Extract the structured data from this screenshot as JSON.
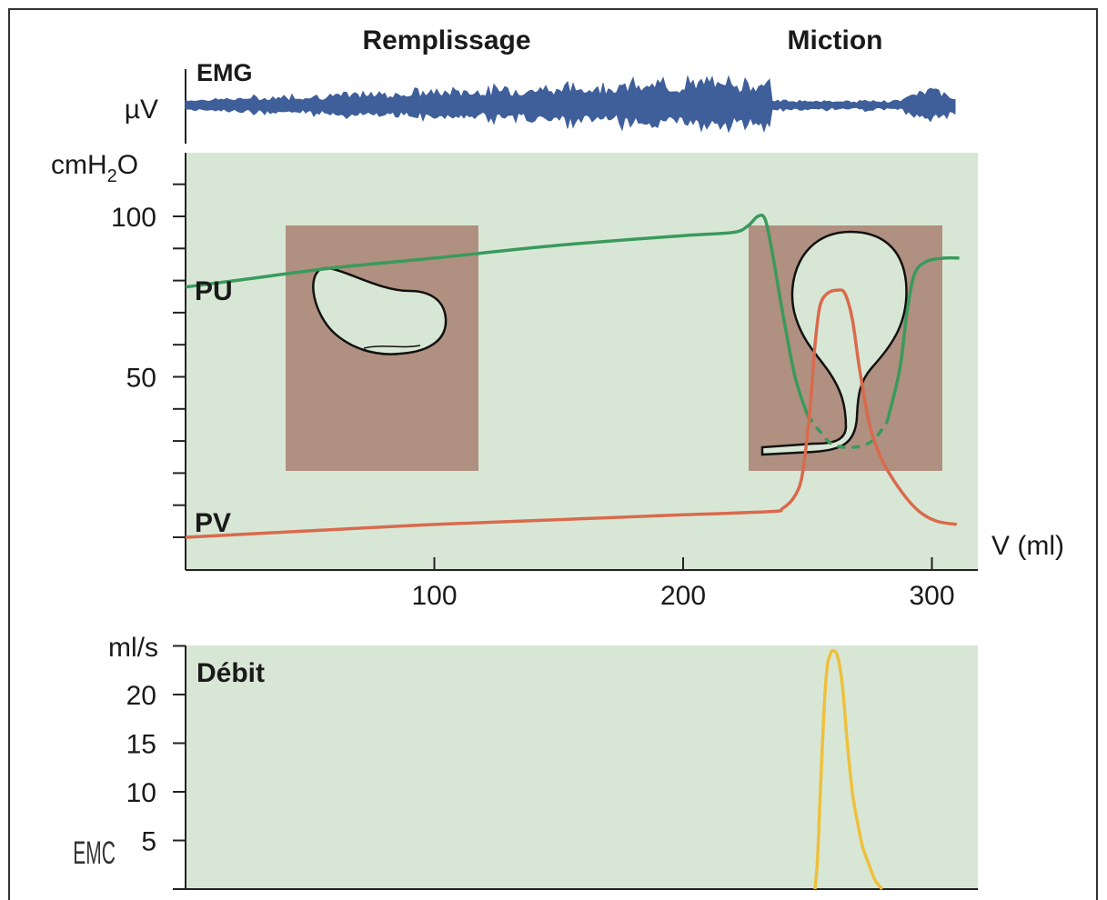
{
  "chart_data": [
    {
      "type": "line",
      "panel": "EMG",
      "phase_labels": [
        "Remplissage",
        "Miction"
      ],
      "series_label": "EMG",
      "ylabel": "µV",
      "color": "#3f5f9b"
    },
    {
      "type": "line",
      "panel": "pressure",
      "ylabel_parts": [
        "cmH",
        "2",
        "O"
      ],
      "xlabel": "V (ml)",
      "x_ticks": [
        100,
        200,
        300
      ],
      "y_ticks": [
        50,
        100
      ],
      "xlim": [
        0,
        320
      ],
      "ylim": [
        0,
        130
      ],
      "background": "#d8e7d5",
      "inset_color": "#b09080",
      "series": [
        {
          "name": "PU",
          "color": "#3a9a5c",
          "points": [
            [
              0,
              78
            ],
            [
              20,
              80
            ],
            [
              60,
              84
            ],
            [
              100,
              87
            ],
            [
              150,
              91
            ],
            [
              200,
              94
            ],
            [
              220,
              95
            ],
            [
              226,
              97
            ],
            [
              230,
              100
            ],
            [
              233,
              99
            ],
            [
              236,
              88
            ],
            [
              240,
              70
            ],
            [
              245,
              50
            ],
            [
              250,
              38
            ],
            [
              255,
              33
            ],
            [
              260,
              29
            ],
            [
              268,
              28
            ],
            [
              276,
              30
            ],
            [
              282,
              36
            ],
            [
              287,
              52
            ],
            [
              290,
              70
            ],
            [
              293,
              82
            ],
            [
              298,
              86
            ],
            [
              305,
              87
            ],
            [
              311,
              87
            ]
          ]
        },
        {
          "name": "PV",
          "color": "#d96a4d",
          "points": [
            [
              0,
              0
            ],
            [
              50,
              2
            ],
            [
              100,
              4
            ],
            [
              150,
              5.5
            ],
            [
              200,
              7
            ],
            [
              235,
              8
            ],
            [
              240,
              9
            ],
            [
              245,
              13
            ],
            [
              248,
              20
            ],
            [
              251,
              40
            ],
            [
              253,
              60
            ],
            [
              255,
              72
            ],
            [
              258,
              76
            ],
            [
              262,
              77
            ],
            [
              265,
              76
            ],
            [
              268,
              68
            ],
            [
              271,
              52
            ],
            [
              275,
              35
            ],
            [
              280,
              24
            ],
            [
              288,
              14
            ],
            [
              295,
              8
            ],
            [
              302,
              5
            ],
            [
              310,
              4
            ]
          ]
        }
      ]
    },
    {
      "type": "line",
      "panel": "flow",
      "series_label": "Débit",
      "ylabel": "ml/s",
      "y_ticks": [
        5,
        10,
        15,
        20
      ],
      "ylim": [
        0,
        25
      ],
      "color": "#eec03c",
      "points": [
        [
          253,
          0
        ],
        [
          254,
          3
        ],
        [
          255,
          9
        ],
        [
          256,
          15
        ],
        [
          257,
          20
        ],
        [
          258,
          23
        ],
        [
          259,
          24
        ],
        [
          260,
          24.5
        ],
        [
          262,
          24
        ],
        [
          264,
          21
        ],
        [
          266,
          15
        ],
        [
          268,
          10
        ],
        [
          270,
          7
        ],
        [
          272,
          4.5
        ],
        [
          274,
          3
        ],
        [
          277,
          1
        ],
        [
          280,
          0
        ]
      ]
    }
  ],
  "watermark": "EMC"
}
